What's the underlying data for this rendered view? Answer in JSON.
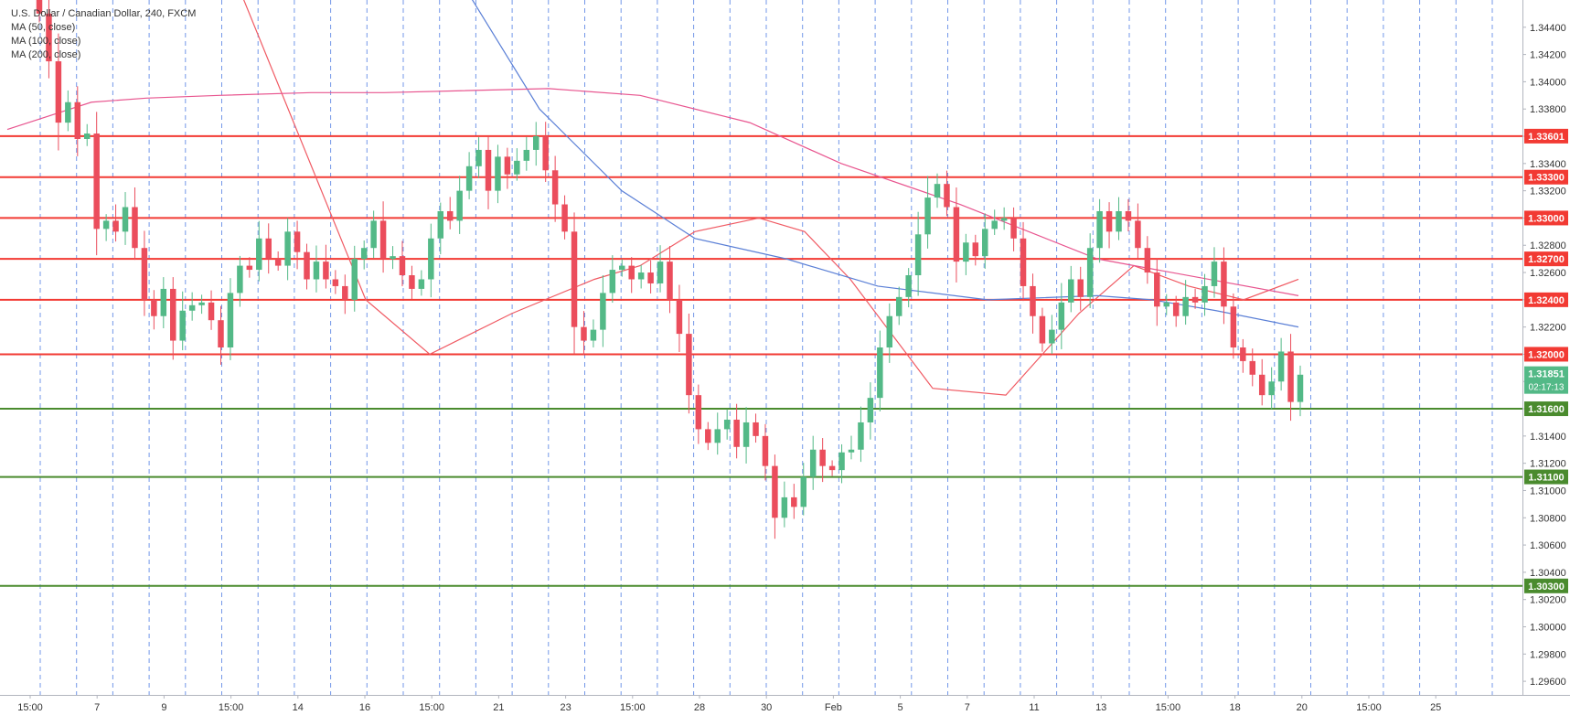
{
  "header": {
    "title": "U.S. Dollar / Canadian Dollar, 240, FXCM",
    "indicators": [
      "MA (50, close)",
      "MA (100, close)",
      "MA (200, close)"
    ]
  },
  "colors": {
    "up": "#53b987",
    "down": "#eb4d5c",
    "resistance": "#f23a33",
    "support": "#4a8b2e",
    "ma50": "#f05a63",
    "ma100": "#5a7fd6",
    "ma200": "#e8558f",
    "grid_dashed": "#5b86e5",
    "price_label": "#53b987"
  },
  "chart_data": {
    "type": "candlestick",
    "ylim": [
      1.295,
      1.346
    ],
    "y_ticks": [
      "1.34400",
      "1.34200",
      "1.34000",
      "1.33800",
      "1.33600",
      "1.33400",
      "1.33200",
      "1.33000",
      "1.32800",
      "1.32600",
      "1.32400",
      "1.32200",
      "1.32000",
      "1.31800",
      "1.31600",
      "1.31400",
      "1.31200",
      "1.31000",
      "1.30800",
      "1.30600",
      "1.30400",
      "1.30200",
      "1.30000",
      "1.29800",
      "1.29600"
    ],
    "x_labels": [
      "15:00",
      "7",
      "9",
      "15:00",
      "14",
      "16",
      "15:00",
      "21",
      "23",
      "15:00",
      "28",
      "30",
      "Feb",
      "5",
      "7",
      "11",
      "13",
      "15:00",
      "18",
      "20",
      "15:00",
      "25"
    ],
    "horizontal_levels": [
      {
        "label": "1.33601",
        "kind": "resistance"
      },
      {
        "label": "1.33300",
        "kind": "resistance"
      },
      {
        "label": "1.33000",
        "kind": "resistance"
      },
      {
        "label": "1.32700",
        "kind": "resistance"
      },
      {
        "label": "1.32400",
        "kind": "resistance"
      },
      {
        "label": "1.32000",
        "kind": "resistance"
      },
      {
        "label": "1.31600",
        "kind": "support"
      },
      {
        "label": "1.31100",
        "kind": "support"
      },
      {
        "label": "1.30300",
        "kind": "support"
      }
    ],
    "last_price": "1.31851",
    "countdown": "02:17:13",
    "closes": [
      1.345,
      1.3415,
      1.337,
      1.3385,
      1.3358,
      1.3362,
      1.3292,
      1.3298,
      1.329,
      1.3308,
      1.3278,
      1.324,
      1.3228,
      1.3248,
      1.321,
      1.3232,
      1.3236,
      1.3238,
      1.3225,
      1.3205,
      1.3245,
      1.3265,
      1.3262,
      1.3285,
      1.327,
      1.3265,
      1.329,
      1.3275,
      1.3255,
      1.3268,
      1.3255,
      1.325,
      1.324,
      1.327,
      1.3278,
      1.3298,
      1.327,
      1.3272,
      1.3258,
      1.3248,
      1.3255,
      1.3285,
      1.3305,
      1.3298,
      1.332,
      1.3338,
      1.335,
      1.332,
      1.3345,
      1.3332,
      1.3342,
      1.335,
      1.336,
      1.3335,
      1.331,
      1.329,
      1.322,
      1.321,
      1.3218,
      1.3245,
      1.3262,
      1.3265,
      1.3255,
      1.326,
      1.3252,
      1.3268,
      1.324,
      1.3215,
      1.317,
      1.3145,
      1.3135,
      1.3145,
      1.3152,
      1.3132,
      1.315,
      1.314,
      1.3118,
      1.308,
      1.3095,
      1.3088,
      1.311,
      1.313,
      1.3118,
      1.3115,
      1.3128,
      1.313,
      1.315,
      1.3168,
      1.3205,
      1.3228,
      1.3242,
      1.3258,
      1.3288,
      1.3315,
      1.3325,
      1.3308,
      1.3268,
      1.3282,
      1.3272,
      1.3292,
      1.3298,
      1.33,
      1.3285,
      1.325,
      1.3228,
      1.3208,
      1.3218,
      1.3238,
      1.3255,
      1.3242,
      1.3278,
      1.3305,
      1.329,
      1.3305,
      1.3298,
      1.3278,
      1.326,
      1.3235,
      1.3238,
      1.3228,
      1.3242,
      1.3238,
      1.325,
      1.3268,
      1.3235,
      1.3205,
      1.3195,
      1.3185,
      1.317,
      1.318,
      1.3202,
      1.3165,
      1.3185
    ],
    "moving_averages": [
      {
        "name": "MA (50, close)",
        "values": [
          1.357,
          1.324,
          1.32,
          1.323,
          1.3255,
          1.3265,
          1.329,
          1.33,
          1.329,
          1.3255,
          1.3215,
          1.3175,
          1.317,
          1.323,
          1.3265,
          1.325,
          1.324,
          1.3255
        ]
      },
      {
        "name": "MA (100, close)",
        "values": [
          1.36,
          1.35,
          1.338,
          1.332,
          1.3285,
          1.327,
          1.325,
          1.324,
          1.3243,
          1.324,
          1.3232,
          1.322
        ]
      },
      {
        "name": "MA (200, close)",
        "values": [
          1.3365,
          1.3385,
          1.3388,
          1.339,
          1.3392,
          1.3392,
          1.3395,
          1.339,
          1.337,
          1.334,
          1.331,
          1.327,
          1.3243
        ]
      }
    ]
  }
}
